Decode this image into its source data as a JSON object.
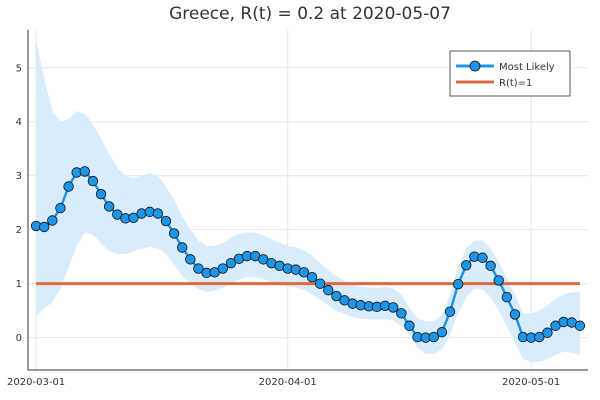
{
  "chart_data": {
    "type": "line",
    "title": "Greece, R(t) = 0.2 at 2020-05-07",
    "xlabel": "",
    "ylabel": "",
    "x_start": "2020-02-29",
    "x_end": "2020-05-08",
    "ylim": [
      -0.6,
      5.7
    ],
    "x_ticks": [
      {
        "date": "2020-03-01",
        "label": "2020-03-01"
      },
      {
        "date": "2020-04-01",
        "label": "2020-04-01"
      },
      {
        "date": "2020-05-01",
        "label": "2020-05-01"
      }
    ],
    "y_ticks": [
      0,
      1,
      2,
      3,
      4,
      5
    ],
    "grid": true,
    "legend_position": "top-right",
    "series": [
      {
        "name": "Most Likely",
        "color": "#1f95e8",
        "marker": "circle",
        "start_date": "2020-03-01",
        "values": [
          2.07,
          2.05,
          2.17,
          2.4,
          2.8,
          3.06,
          3.08,
          2.9,
          2.66,
          2.43,
          2.28,
          2.21,
          2.22,
          2.3,
          2.33,
          2.3,
          2.16,
          1.93,
          1.67,
          1.45,
          1.28,
          1.2,
          1.21,
          1.28,
          1.38,
          1.46,
          1.51,
          1.51,
          1.45,
          1.38,
          1.33,
          1.28,
          1.26,
          1.21,
          1.12,
          1.0,
          0.88,
          0.77,
          0.69,
          0.63,
          0.6,
          0.58,
          0.57,
          0.59,
          0.56,
          0.45,
          0.22,
          0.01,
          0.0,
          0.01,
          0.1,
          0.48,
          0.99,
          1.34,
          1.5,
          1.48,
          1.33,
          1.06,
          0.75,
          0.43,
          0.01,
          0.0,
          0.01,
          0.09,
          0.22,
          0.29,
          0.28,
          0.22
        ],
        "lower": [
          0.4,
          0.55,
          0.65,
          0.9,
          1.3,
          1.7,
          1.95,
          1.9,
          1.75,
          1.6,
          1.55,
          1.55,
          1.6,
          1.65,
          1.68,
          1.65,
          1.55,
          1.35,
          1.15,
          1.0,
          0.9,
          0.85,
          0.87,
          0.92,
          1.0,
          1.07,
          1.12,
          1.12,
          1.08,
          1.03,
          0.98,
          0.95,
          0.93,
          0.88,
          0.8,
          0.7,
          0.6,
          0.5,
          0.43,
          0.38,
          0.35,
          0.34,
          0.33,
          0.34,
          0.32,
          0.22,
          0.05,
          -0.2,
          -0.3,
          -0.3,
          -0.22,
          0.05,
          0.45,
          0.75,
          0.9,
          0.9,
          0.75,
          0.5,
          0.2,
          -0.1,
          -0.4,
          -0.45,
          -0.45,
          -0.4,
          -0.32,
          -0.26,
          -0.28,
          -0.32
        ],
        "upper": [
          5.5,
          4.8,
          4.2,
          4.0,
          4.05,
          4.2,
          4.15,
          3.95,
          3.7,
          3.4,
          3.15,
          3.0,
          2.95,
          3.0,
          3.05,
          3.0,
          2.8,
          2.55,
          2.25,
          2.0,
          1.8,
          1.7,
          1.7,
          1.75,
          1.85,
          1.92,
          1.95,
          1.95,
          1.9,
          1.82,
          1.76,
          1.7,
          1.67,
          1.62,
          1.52,
          1.38,
          1.25,
          1.14,
          1.05,
          0.98,
          0.95,
          0.93,
          0.92,
          0.94,
          0.91,
          0.8,
          0.55,
          0.35,
          0.3,
          0.3,
          0.42,
          0.8,
          1.32,
          1.65,
          1.8,
          1.8,
          1.65,
          1.4,
          1.1,
          0.8,
          0.45,
          0.45,
          0.5,
          0.6,
          0.72,
          0.8,
          0.84,
          0.85
        ]
      },
      {
        "name": "R(t)=1",
        "color": "#e0693f",
        "constant": 1.0
      }
    ],
    "band_color": "#d9ecfb"
  }
}
